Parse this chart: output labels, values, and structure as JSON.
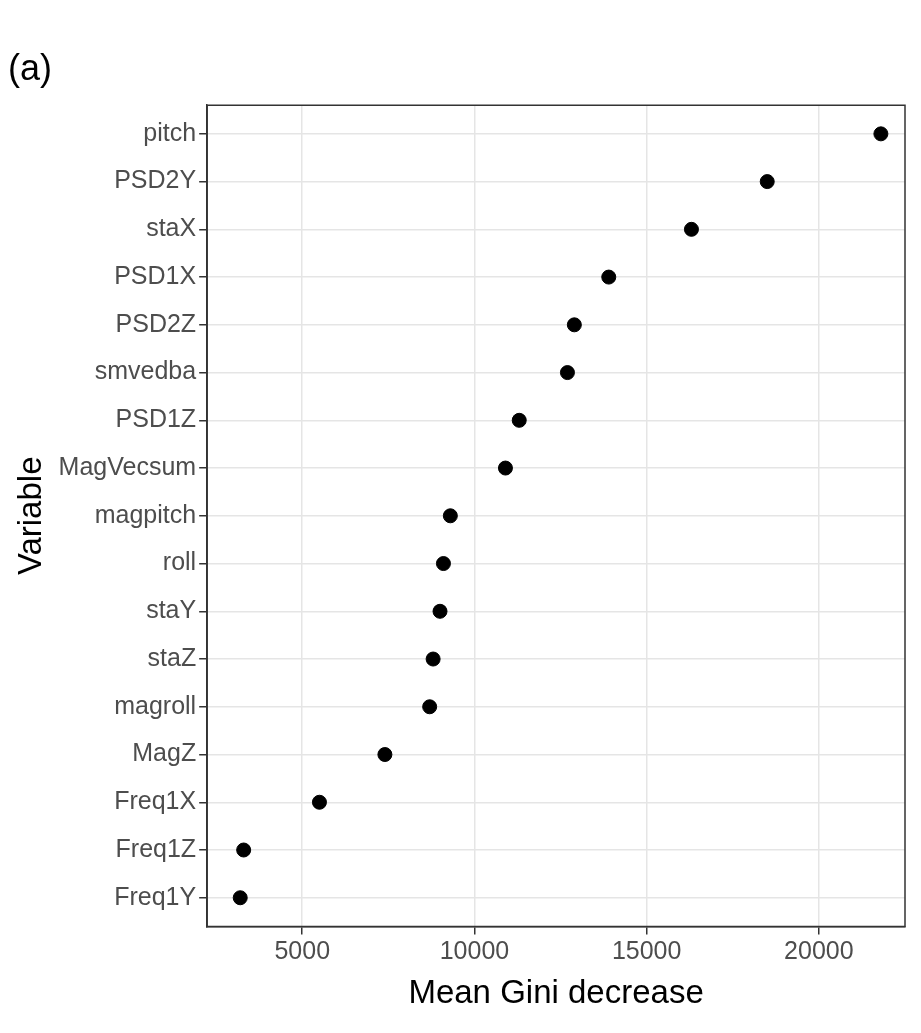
{
  "chart_data": {
    "type": "scatter",
    "title": "(a)",
    "xlabel": "Mean Gini decrease",
    "ylabel": "Variable",
    "orientation": "horizontal",
    "categories": [
      "pitch",
      "PSD2Y",
      "staX",
      "PSD1X",
      "PSD2Z",
      "smvedba",
      "PSD1Z",
      "MagVecsum",
      "magpitch",
      "roll",
      "staY",
      "staZ",
      "magroll",
      "MagZ",
      "Freq1X",
      "Freq1Z",
      "Freq1Y"
    ],
    "values": [
      21800,
      18500,
      16300,
      13900,
      12900,
      12700,
      11300,
      10900,
      9300,
      9100,
      9000,
      8800,
      8700,
      7400,
      5500,
      3300,
      3200
    ],
    "color": "#000000",
    "marker": "circle",
    "xlim": [
      2240,
      22500
    ],
    "xticks": [
      5000,
      10000,
      15000,
      20000
    ],
    "grid": true
  }
}
